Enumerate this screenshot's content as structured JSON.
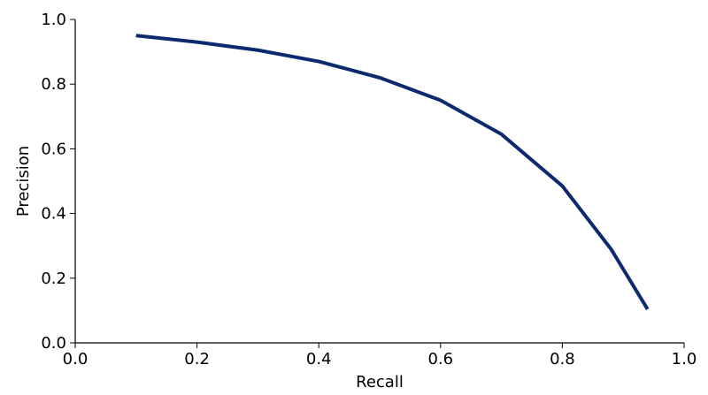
{
  "chart_data": {
    "type": "line",
    "xlabel": "Recall",
    "ylabel": "Precision",
    "x": [
      0.1,
      0.2,
      0.3,
      0.4,
      0.5,
      0.6,
      0.7,
      0.8,
      0.88,
      0.94
    ],
    "series": [
      {
        "color": "#0c2a6e",
        "values": [
          0.95,
          0.93,
          0.905,
          0.87,
          0.82,
          0.75,
          0.645,
          0.485,
          0.29,
          0.104
        ]
      }
    ],
    "xlim": [
      0,
      1
    ],
    "ylim": [
      0,
      1
    ],
    "xticks": [
      {
        "value": 0,
        "label": "0.0"
      },
      0.2,
      0.4,
      0.6,
      0.8,
      {
        "value": 1,
        "label": "1.0"
      }
    ],
    "yticks": [
      {
        "value": 0,
        "label": "0.0"
      },
      0.2,
      0.4,
      0.6,
      0.8,
      {
        "value": 1,
        "label": "1.0"
      }
    ]
  }
}
